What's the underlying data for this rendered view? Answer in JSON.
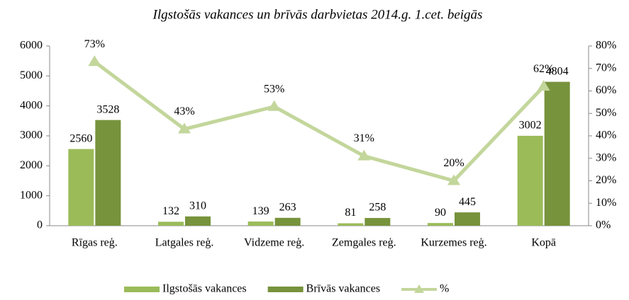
{
  "chart_data": {
    "type": "bar_line",
    "title": "Ilgstošās vakances un brīvās darbvietas 2014.g. 1.cet. beigās",
    "categories": [
      "Rīgas reģ.",
      "Latgales reģ.",
      "Vidzeme reģ.",
      "Zemgales reģ.",
      "Kurzemes reģ.",
      "Kopā"
    ],
    "series": [
      {
        "name": "Ilgstošās vakances",
        "color": "#9bbb59",
        "type": "bar",
        "values": [
          2560,
          132,
          139,
          81,
          90,
          3002
        ]
      },
      {
        "name": "Brīvās vakances",
        "color": "#77933c",
        "type": "bar",
        "values": [
          3528,
          310,
          263,
          258,
          445,
          4804
        ]
      },
      {
        "name": "%",
        "color": "#c3d69b",
        "type": "line",
        "axis": "y2",
        "values": [
          73,
          43,
          53,
          31,
          20,
          62
        ],
        "value_labels": [
          "73%",
          "43%",
          "53%",
          "31%",
          "20%",
          "62%"
        ]
      }
    ],
    "ylim": [
      0,
      6000
    ],
    "yticks": [
      0,
      1000,
      2000,
      3000,
      4000,
      5000,
      6000
    ],
    "y2lim": [
      0,
      80
    ],
    "y2ticks": [
      {
        "value": 0,
        "label": "0%"
      },
      {
        "value": 10,
        "label": "10%"
      },
      {
        "value": 20,
        "label": "20%"
      },
      {
        "value": 30,
        "label": "30%"
      },
      {
        "value": 40,
        "label": "40%"
      },
      {
        "value": 50,
        "label": "50%"
      },
      {
        "value": 60,
        "label": "60%"
      },
      {
        "value": 70,
        "label": "70%"
      },
      {
        "value": 80,
        "label": "80%"
      }
    ],
    "legend": "bottom"
  }
}
